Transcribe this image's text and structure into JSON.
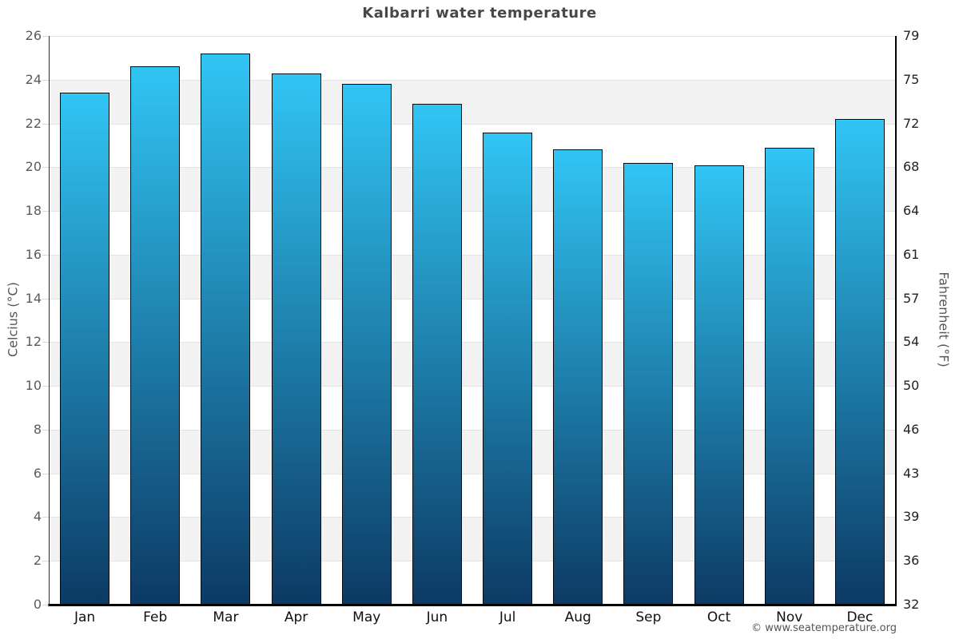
{
  "page": {
    "footer": "© www.seatemperature.org"
  },
  "chart_data": {
    "type": "bar",
    "title": "Kalbarri water temperature",
    "categories": [
      "Jan",
      "Feb",
      "Mar",
      "Apr",
      "May",
      "Jun",
      "Jul",
      "Aug",
      "Sep",
      "Oct",
      "Nov",
      "Dec"
    ],
    "values": [
      23.4,
      24.6,
      25.2,
      24.3,
      23.8,
      22.9,
      21.6,
      20.8,
      20.2,
      20.1,
      20.9,
      22.2
    ],
    "unit": "°C",
    "ylabel_left": "Celcius (°C)",
    "ylabel_right": "Fahrenheit (°F)",
    "ylim": [
      0,
      26
    ],
    "y_left_ticks": [
      26,
      24,
      22,
      20,
      18,
      16,
      14,
      12,
      10,
      8,
      6,
      4,
      2,
      0
    ],
    "y_right_ticks": [
      79,
      75,
      72,
      68,
      64,
      61,
      57,
      54,
      50,
      46,
      43,
      39,
      36,
      32
    ],
    "grid": true,
    "legend_position": "none",
    "band_step_celsius": 2,
    "colors": {
      "bar_gradient_top": "#31c5f4",
      "bar_gradient_bottom": "#0c3a64",
      "bar_border": "#0a0a0a",
      "band_fill": "#f2f2f2",
      "gridline": "#e3e3e3",
      "title_text": "#474747",
      "left_tick_text": "#5a5a5a",
      "right_tick_text": "#222222",
      "month_text": "#111111",
      "axis_title_text": "#555555",
      "footer_text": "#555555"
    }
  }
}
